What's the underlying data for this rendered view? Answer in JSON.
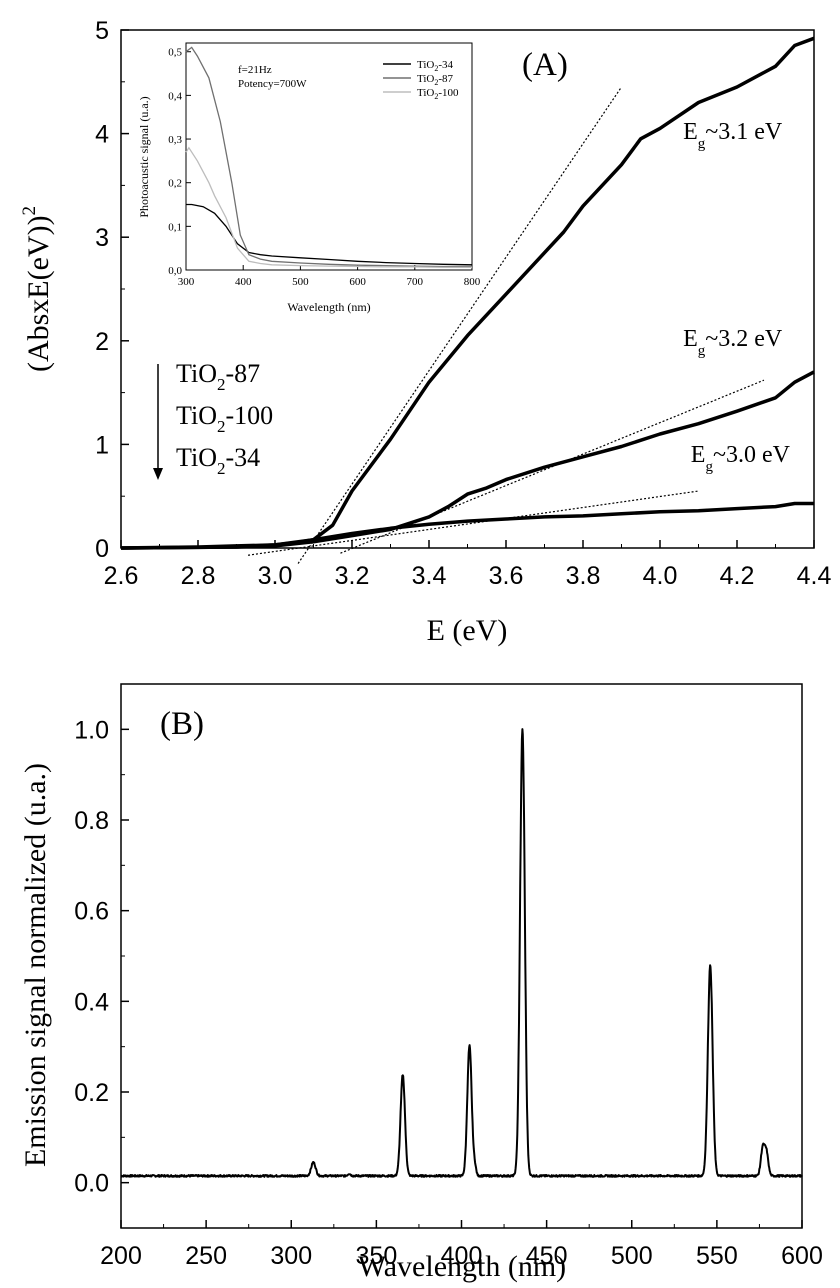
{
  "chart_data": [
    {
      "panel": "(A)",
      "type": "line",
      "xlabel": "E (eV)",
      "ylabel": "(AbsxE(eV))",
      "ylabel_sup": "2",
      "xlim": [
        2.6,
        4.4
      ],
      "ylim": [
        0,
        5
      ],
      "xticks": [
        "2.6",
        "2.8",
        "3.0",
        "3.2",
        "3.4",
        "3.6",
        "3.8",
        "4.0",
        "4.2",
        "4.4"
      ],
      "yticks": [
        "0",
        "1",
        "2",
        "3",
        "4",
        "5"
      ],
      "series": [
        {
          "name": "TiO2-87",
          "x": [
            2.6,
            2.8,
            2.9,
            3.0,
            3.05,
            3.1,
            3.15,
            3.2,
            3.3,
            3.4,
            3.5,
            3.6,
            3.7,
            3.75,
            3.8,
            3.9,
            3.95,
            4.0,
            4.1,
            4.2,
            4.3,
            4.35,
            4.4
          ],
          "y": [
            0,
            0.01,
            0.02,
            0.03,
            0.05,
            0.08,
            0.22,
            0.55,
            1.05,
            1.6,
            2.05,
            2.45,
            2.85,
            3.05,
            3.3,
            3.7,
            3.95,
            4.05,
            4.3,
            4.45,
            4.65,
            4.85,
            4.92
          ]
        },
        {
          "name": "TiO2-100",
          "x": [
            2.6,
            2.9,
            3.0,
            3.1,
            3.2,
            3.3,
            3.4,
            3.45,
            3.5,
            3.55,
            3.6,
            3.7,
            3.8,
            3.9,
            4.0,
            4.1,
            4.2,
            4.3,
            4.35,
            4.4
          ],
          "y": [
            0,
            0.01,
            0.02,
            0.06,
            0.12,
            0.18,
            0.3,
            0.4,
            0.52,
            0.58,
            0.66,
            0.78,
            0.88,
            0.98,
            1.1,
            1.2,
            1.32,
            1.45,
            1.6,
            1.7
          ]
        },
        {
          "name": "TiO2-34",
          "x": [
            2.6,
            2.9,
            3.0,
            3.1,
            3.2,
            3.3,
            3.4,
            3.5,
            3.6,
            3.7,
            3.8,
            3.9,
            4.0,
            4.1,
            4.2,
            4.3,
            4.35,
            4.4
          ],
          "y": [
            0,
            0.01,
            0.03,
            0.08,
            0.14,
            0.19,
            0.23,
            0.26,
            0.28,
            0.3,
            0.31,
            0.33,
            0.35,
            0.36,
            0.38,
            0.4,
            0.43,
            0.43
          ]
        }
      ],
      "fits": [
        {
          "for": "TiO2-87",
          "x": [
            3.06,
            3.9
          ],
          "y": [
            -0.15,
            4.45
          ]
        },
        {
          "for": "TiO2-100",
          "x": [
            3.17,
            4.27
          ],
          "y": [
            -0.05,
            1.62
          ]
        },
        {
          "for": "TiO2-34",
          "x": [
            2.93,
            4.1
          ],
          "y": [
            -0.07,
            0.55
          ]
        }
      ],
      "annotations": [
        {
          "text": "E",
          "sub": "g",
          "tail": "~3.1 eV",
          "x": 4.06,
          "y": 3.95
        },
        {
          "text": "E",
          "sub": "g",
          "tail": "~3.2 eV",
          "x": 4.06,
          "y": 1.95
        },
        {
          "text": "E",
          "sub": "g",
          "tail": "~3.0 eV",
          "x": 4.08,
          "y": 0.83
        }
      ],
      "order_list": [
        {
          "pre": "TiO",
          "sub": "2",
          "post": "-87"
        },
        {
          "pre": "TiO",
          "sub": "2",
          "post": "-100"
        },
        {
          "pre": "TiO",
          "sub": "2",
          "post": "-34"
        }
      ],
      "inset": {
        "xlabel": "Wavelength (nm)",
        "ylabel": "Photoacustic signal (u.a.)",
        "xlim": [
          300,
          800
        ],
        "ylim": [
          0,
          0.52
        ],
        "xticks": [
          "300",
          "400",
          "500",
          "600",
          "700",
          "800"
        ],
        "yticks": [
          "0,0",
          "0,1",
          "0,2",
          "0,3",
          "0,4",
          "0,5"
        ],
        "note1": "f=21Hz",
        "note2": "Potency=700W",
        "legend": [
          {
            "pre": "TiO",
            "sub": "2",
            "post": "-34",
            "color": "#000000"
          },
          {
            "pre": "TiO",
            "sub": "2",
            "post": "-87",
            "color": "#707070"
          },
          {
            "pre": "TiO",
            "sub": "2",
            "post": "-100",
            "color": "#bdbdbd"
          }
        ],
        "series": [
          {
            "name": "TiO2-34",
            "color": "#000000",
            "x": [
              300,
              310,
              330,
              350,
              370,
              390,
              410,
              430,
              450,
              500,
              550,
              600,
              650,
              700,
              750,
              800
            ],
            "y": [
              0.15,
              0.15,
              0.145,
              0.13,
              0.1,
              0.06,
              0.04,
              0.035,
              0.032,
              0.028,
              0.024,
              0.02,
              0.017,
              0.015,
              0.013,
              0.012
            ]
          },
          {
            "name": "TiO2-87",
            "color": "#707070",
            "x": [
              300,
              310,
              320,
              340,
              360,
              380,
              395,
              410,
              430,
              450,
              500,
              550,
              600,
              650,
              700,
              750,
              800
            ],
            "y": [
              0.5,
              0.51,
              0.49,
              0.44,
              0.34,
              0.2,
              0.08,
              0.035,
              0.025,
              0.02,
              0.016,
              0.013,
              0.011,
              0.01,
              0.009,
              0.008,
              0.008
            ]
          },
          {
            "name": "TiO2-100",
            "color": "#bdbdbd",
            "x": [
              300,
              305,
              320,
              340,
              350,
              370,
              390,
              410,
              430,
              450,
              500,
              550,
              600,
              650,
              700,
              750,
              800
            ],
            "y": [
              0.27,
              0.28,
              0.25,
              0.2,
              0.17,
              0.12,
              0.05,
              0.02,
              0.015,
              0.012,
              0.01,
              0.009,
              0.008,
              0.007,
              0.007,
              0.006,
              0.006
            ]
          }
        ]
      }
    },
    {
      "panel": "(B)",
      "type": "line",
      "xlabel": "Wavelength (nm)",
      "ylabel": "Emission signal normalized (u.a.)",
      "xlim": [
        200,
        600
      ],
      "ylim": [
        -0.1,
        1.1
      ],
      "xticks": [
        "200",
        "250",
        "300",
        "350",
        "400",
        "450",
        "500",
        "550",
        "600"
      ],
      "yticks": [
        "0.0",
        "0.2",
        "0.4",
        "0.6",
        "0.8",
        "1.0"
      ],
      "baseline": 0.015,
      "peaks": [
        {
          "x": 313,
          "y": 0.045,
          "w": 1.3
        },
        {
          "x": 334,
          "y": 0.02,
          "w": 0.8
        },
        {
          "x": 365.5,
          "y": 0.238,
          "w": 1.3
        },
        {
          "x": 404.7,
          "y": 0.302,
          "w": 1.3
        },
        {
          "x": 407.8,
          "y": 0.035,
          "w": 0.8
        },
        {
          "x": 435.8,
          "y": 1.0,
          "w": 1.4
        },
        {
          "x": 546.1,
          "y": 0.479,
          "w": 1.4
        },
        {
          "x": 576.9,
          "y": 0.075,
          "w": 1.1
        },
        {
          "x": 579.1,
          "y": 0.067,
          "w": 1.1
        }
      ]
    }
  ]
}
